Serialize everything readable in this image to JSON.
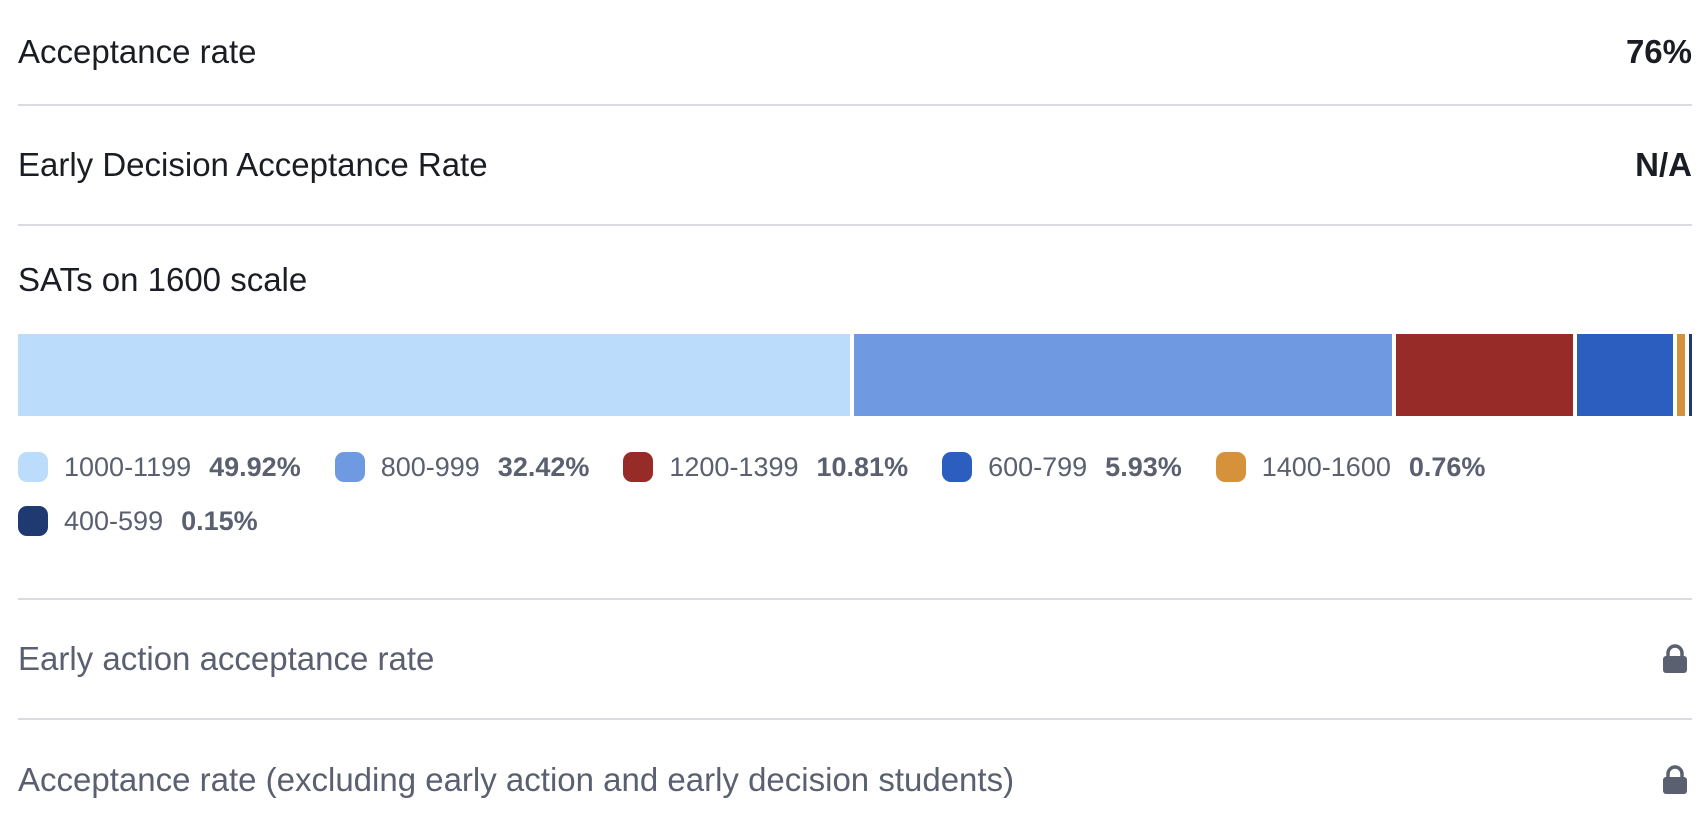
{
  "rows": {
    "acceptance_rate": {
      "label": "Acceptance rate",
      "value": "76%"
    },
    "early_decision": {
      "label": "Early Decision Acceptance Rate",
      "value": "N/A"
    },
    "early_action": {
      "label": "Early action acceptance rate",
      "icon": "lock-icon"
    },
    "excluding_early": {
      "label": "Acceptance rate (excluding early action and early decision students)",
      "icon": "lock-icon"
    }
  },
  "sat": {
    "title": "SATs on 1600 scale",
    "legend": [
      {
        "label": "1000-1199",
        "pct": "49.92%"
      },
      {
        "label": "800-999",
        "pct": "32.42%"
      },
      {
        "label": "1200-1399",
        "pct": "10.81%"
      },
      {
        "label": "600-799",
        "pct": "5.93%"
      },
      {
        "label": "1400-1600",
        "pct": "0.76%"
      },
      {
        "label": "400-599",
        "pct": "0.15%"
      }
    ]
  },
  "chart_data": {
    "type": "bar",
    "orientation": "horizontal-stacked",
    "title": "SATs on 1600 scale",
    "categories": [
      "1000-1199",
      "800-999",
      "1200-1399",
      "600-799",
      "1400-1600",
      "400-599"
    ],
    "values": [
      49.92,
      32.42,
      10.81,
      5.93,
      0.76,
      0.15
    ],
    "colors": [
      "#bcdcfb",
      "#6f9ae2",
      "#972b27",
      "#2b5ebe",
      "#d6923b",
      "#1e3a70"
    ],
    "legend": "bottom"
  }
}
